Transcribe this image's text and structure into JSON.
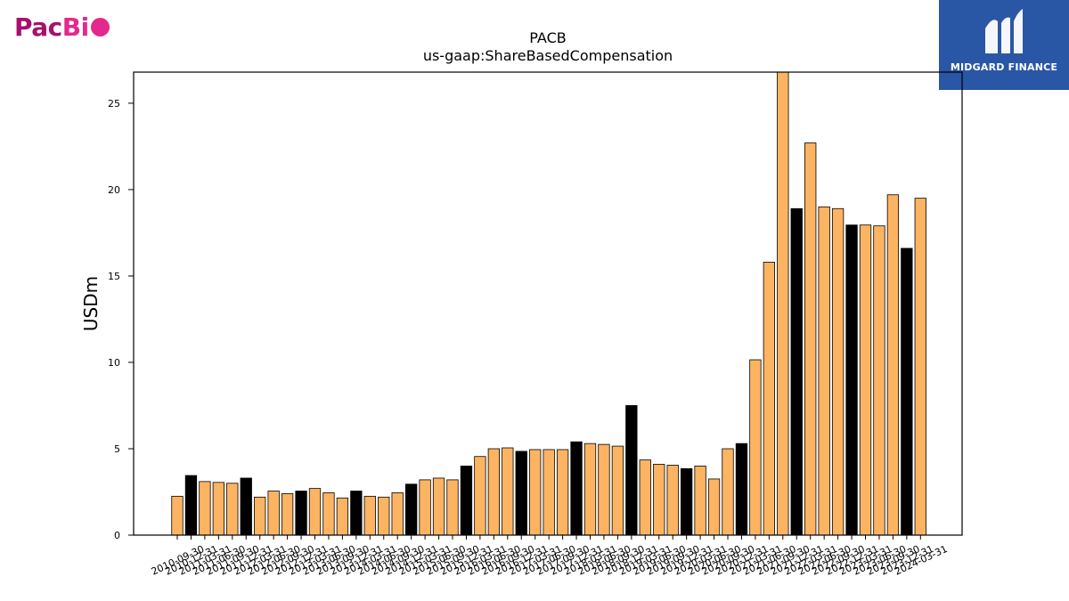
{
  "logos": {
    "left": {
      "part1": "Pac",
      "part2": "Bi"
    },
    "right": {
      "brand": "MIDGARD FINANCE"
    }
  },
  "colors": {
    "bar_default": "#fdb462",
    "bar_highlight": "#000000",
    "axis": "#000000"
  },
  "chart_data": {
    "type": "bar",
    "title": "PACB",
    "subtitle": "us-gaap:ShareBasedCompensation",
    "xlabel": "",
    "ylabel": "USDm",
    "ylim": [
      0,
      26.8
    ],
    "yticks": [
      0,
      5,
      10,
      15,
      20,
      25
    ],
    "grid": false,
    "categories": [
      "2010-09-30",
      "2010-12-31",
      "2011-03-31",
      "2011-06-30",
      "2011-09-30",
      "2011-12-31",
      "2012-03-31",
      "2012-06-30",
      "2012-09-30",
      "2012-12-31",
      "2013-03-31",
      "2013-06-30",
      "2013-09-30",
      "2013-12-31",
      "2014-03-31",
      "2014-06-30",
      "2014-09-30",
      "2014-12-31",
      "2015-03-31",
      "2015-06-30",
      "2015-09-30",
      "2015-12-31",
      "2016-03-31",
      "2016-06-30",
      "2016-09-30",
      "2016-12-31",
      "2017-03-31",
      "2017-06-30",
      "2017-09-30",
      "2017-12-31",
      "2018-03-31",
      "2018-06-30",
      "2018-09-30",
      "2018-12-31",
      "2019-03-31",
      "2019-06-30",
      "2019-09-30",
      "2019-12-31",
      "2020-03-31",
      "2020-06-30",
      "2020-09-30",
      "2020-12-31",
      "2021-03-31",
      "2021-06-30",
      "2021-09-30",
      "2021-12-31",
      "2022-03-31",
      "2022-06-30",
      "2022-09-30",
      "2022-12-31",
      "2023-03-31",
      "2023-06-30",
      "2023-09-30",
      "2023-12-31",
      "2024-03-31"
    ],
    "values": [
      2.25,
      3.45,
      3.1,
      3.05,
      3.0,
      3.3,
      2.2,
      2.55,
      2.4,
      2.55,
      2.7,
      2.45,
      2.15,
      2.55,
      2.25,
      2.2,
      2.45,
      2.95,
      3.2,
      3.3,
      3.2,
      4.0,
      4.55,
      5.0,
      5.05,
      4.85,
      4.95,
      4.95,
      4.95,
      5.4,
      5.3,
      5.25,
      5.15,
      7.5,
      4.35,
      4.1,
      4.05,
      3.85,
      4.0,
      3.25,
      5.0,
      5.3,
      10.15,
      15.8,
      26.8,
      18.9,
      22.7,
      19.0,
      18.9,
      17.95,
      17.95,
      17.9,
      19.7,
      16.6,
      19.5
    ],
    "highlight_categories": [
      "2010-12-31",
      "2011-12-31",
      "2012-12-31",
      "2013-12-31",
      "2014-12-31",
      "2015-12-31",
      "2016-12-31",
      "2017-12-31",
      "2018-12-31",
      "2019-12-31",
      "2020-12-31",
      "2021-12-31",
      "2022-12-31",
      "2023-12-31"
    ]
  }
}
